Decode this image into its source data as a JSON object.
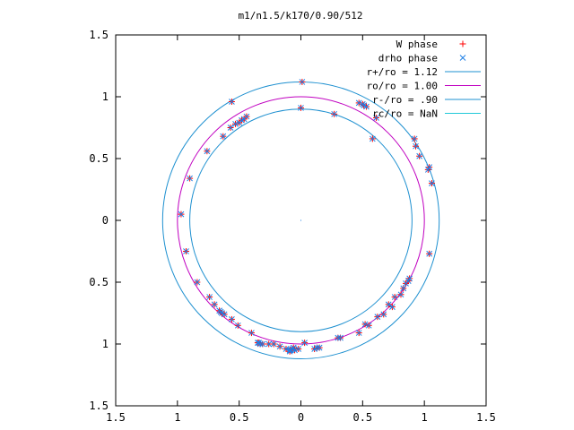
{
  "chart_data": {
    "type": "scatter",
    "title": "m1/n1.5/k170/0.90/512",
    "xlabel": "",
    "ylabel": "",
    "xlim": [
      -1.5,
      1.5
    ],
    "ylim": [
      -1.5,
      1.5
    ],
    "xticks": [
      -1.5,
      -1,
      -0.5,
      0,
      0.5,
      1,
      1.5
    ],
    "xtick_labels": [
      "1.5",
      "1",
      "0.5",
      "0",
      "0.5",
      "1",
      "1.5"
    ],
    "yticks": [
      -1.5,
      -1,
      -0.5,
      0,
      0.5,
      1,
      1.5
    ],
    "ytick_labels": [
      "1.5",
      "1",
      "0.5",
      "0",
      "0.5",
      "1",
      "1.5"
    ],
    "grid": false,
    "legend_position": "top-right",
    "series": [
      {
        "name": "W phase",
        "kind": "points",
        "marker": "plus",
        "color": "#ff0000",
        "points": [
          [
            0.01,
            1.12
          ],
          [
            0.0,
            0.91
          ],
          [
            -0.56,
            0.96
          ],
          [
            -0.44,
            0.84
          ],
          [
            -0.48,
            0.81
          ],
          [
            -0.46,
            0.82
          ],
          [
            -0.5,
            0.79
          ],
          [
            -0.53,
            0.78
          ],
          [
            -0.57,
            0.75
          ],
          [
            -0.63,
            0.68
          ],
          [
            -0.76,
            0.56
          ],
          [
            -0.9,
            0.34
          ],
          [
            -0.97,
            0.05
          ],
          [
            -0.93,
            -0.25
          ],
          [
            -0.84,
            -0.5
          ],
          [
            -0.74,
            -0.62
          ],
          [
            -0.7,
            -0.68
          ],
          [
            -0.66,
            -0.73
          ],
          [
            -0.65,
            -0.74
          ],
          [
            -0.64,
            -0.75
          ],
          [
            -0.62,
            -0.76
          ],
          [
            -0.56,
            -0.8
          ],
          [
            -0.51,
            -0.85
          ],
          [
            -0.4,
            -0.91
          ],
          [
            -0.35,
            -0.99
          ],
          [
            -0.34,
            -0.99
          ],
          [
            -0.33,
            -1.0
          ],
          [
            -0.31,
            -1.0
          ],
          [
            -0.26,
            -1.0
          ],
          [
            -0.22,
            -1.0
          ],
          [
            -0.17,
            -1.02
          ],
          [
            -0.12,
            -1.04
          ],
          [
            -0.09,
            -1.05
          ],
          [
            -0.05,
            -1.05
          ],
          [
            -0.02,
            -1.04
          ],
          [
            0.03,
            -0.99
          ],
          [
            0.11,
            -1.04
          ],
          [
            0.13,
            -1.03
          ],
          [
            0.15,
            -1.03
          ],
          [
            0.3,
            -0.95
          ],
          [
            0.32,
            -0.95
          ],
          [
            0.47,
            -0.91
          ],
          [
            0.52,
            -0.84
          ],
          [
            0.55,
            -0.85
          ],
          [
            0.62,
            -0.78
          ],
          [
            0.67,
            -0.76
          ],
          [
            0.71,
            -0.68
          ],
          [
            0.74,
            -0.7
          ],
          [
            0.76,
            -0.62
          ],
          [
            0.81,
            -0.6
          ],
          [
            0.83,
            -0.55
          ],
          [
            0.85,
            -0.51
          ],
          [
            0.87,
            -0.49
          ],
          [
            0.88,
            -0.47
          ],
          [
            1.04,
            -0.27
          ],
          [
            1.06,
            0.3
          ],
          [
            1.03,
            0.41
          ],
          [
            1.04,
            0.43
          ],
          [
            0.96,
            0.52
          ],
          [
            0.93,
            0.6
          ],
          [
            0.92,
            0.66
          ],
          [
            0.58,
            0.66
          ],
          [
            0.61,
            0.83
          ],
          [
            0.53,
            0.92
          ],
          [
            0.51,
            0.93
          ],
          [
            0.5,
            0.94
          ],
          [
            0.47,
            0.95
          ],
          [
            0.27,
            0.86
          ],
          [
            -0.06,
            -1.03
          ],
          [
            -0.07,
            -1.04
          ],
          [
            -0.08,
            -1.05
          ],
          [
            -0.09,
            -1.06
          ]
        ]
      },
      {
        "name": "drho phase",
        "kind": "points",
        "marker": "cross",
        "color": "#1e7fe6",
        "points": [
          [
            0.01,
            1.12
          ],
          [
            0.0,
            0.91
          ],
          [
            -0.56,
            0.96
          ],
          [
            -0.44,
            0.84
          ],
          [
            -0.48,
            0.81
          ],
          [
            -0.46,
            0.82
          ],
          [
            -0.5,
            0.79
          ],
          [
            -0.53,
            0.78
          ],
          [
            -0.57,
            0.75
          ],
          [
            -0.63,
            0.68
          ],
          [
            -0.76,
            0.56
          ],
          [
            -0.9,
            0.34
          ],
          [
            -0.97,
            0.05
          ],
          [
            -0.93,
            -0.25
          ],
          [
            -0.84,
            -0.5
          ],
          [
            -0.74,
            -0.62
          ],
          [
            -0.7,
            -0.68
          ],
          [
            -0.66,
            -0.73
          ],
          [
            -0.65,
            -0.74
          ],
          [
            -0.64,
            -0.75
          ],
          [
            -0.62,
            -0.76
          ],
          [
            -0.56,
            -0.8
          ],
          [
            -0.51,
            -0.85
          ],
          [
            -0.4,
            -0.91
          ],
          [
            -0.35,
            -0.99
          ],
          [
            -0.34,
            -0.99
          ],
          [
            -0.33,
            -1.0
          ],
          [
            -0.31,
            -1.0
          ],
          [
            -0.26,
            -1.0
          ],
          [
            -0.22,
            -1.0
          ],
          [
            -0.17,
            -1.02
          ],
          [
            -0.12,
            -1.04
          ],
          [
            -0.09,
            -1.05
          ],
          [
            -0.05,
            -1.05
          ],
          [
            -0.02,
            -1.04
          ],
          [
            0.03,
            -0.99
          ],
          [
            0.11,
            -1.04
          ],
          [
            0.13,
            -1.03
          ],
          [
            0.15,
            -1.03
          ],
          [
            0.3,
            -0.95
          ],
          [
            0.32,
            -0.95
          ],
          [
            0.47,
            -0.91
          ],
          [
            0.52,
            -0.84
          ],
          [
            0.55,
            -0.85
          ],
          [
            0.62,
            -0.78
          ],
          [
            0.67,
            -0.76
          ],
          [
            0.71,
            -0.68
          ],
          [
            0.74,
            -0.7
          ],
          [
            0.76,
            -0.62
          ],
          [
            0.81,
            -0.6
          ],
          [
            0.83,
            -0.55
          ],
          [
            0.85,
            -0.51
          ],
          [
            0.87,
            -0.49
          ],
          [
            0.88,
            -0.47
          ],
          [
            1.04,
            -0.27
          ],
          [
            1.06,
            0.3
          ],
          [
            1.03,
            0.41
          ],
          [
            1.04,
            0.43
          ],
          [
            0.96,
            0.52
          ],
          [
            0.93,
            0.6
          ],
          [
            0.92,
            0.66
          ],
          [
            0.58,
            0.66
          ],
          [
            0.61,
            0.83
          ],
          [
            0.53,
            0.92
          ],
          [
            0.51,
            0.93
          ],
          [
            0.5,
            0.94
          ],
          [
            0.47,
            0.95
          ],
          [
            0.27,
            0.86
          ],
          [
            -0.06,
            -1.03
          ],
          [
            -0.07,
            -1.04
          ],
          [
            -0.08,
            -1.05
          ],
          [
            -0.09,
            -1.06
          ]
        ]
      },
      {
        "name": "r+/ro = 1.12",
        "kind": "circle",
        "r": 1.12,
        "color": "#1e90d0"
      },
      {
        "name": "ro/ro = 1.00",
        "kind": "circle",
        "r": 1.0,
        "color": "#c000c0"
      },
      {
        "name": "r-/ro = .90",
        "kind": "circle",
        "r": 0.9,
        "color": "#1e90d0"
      },
      {
        "name": "rc/ro = NaN",
        "kind": "circle",
        "r": null,
        "color": "#20c8d8"
      }
    ],
    "center_point": [
      0,
      0
    ]
  }
}
